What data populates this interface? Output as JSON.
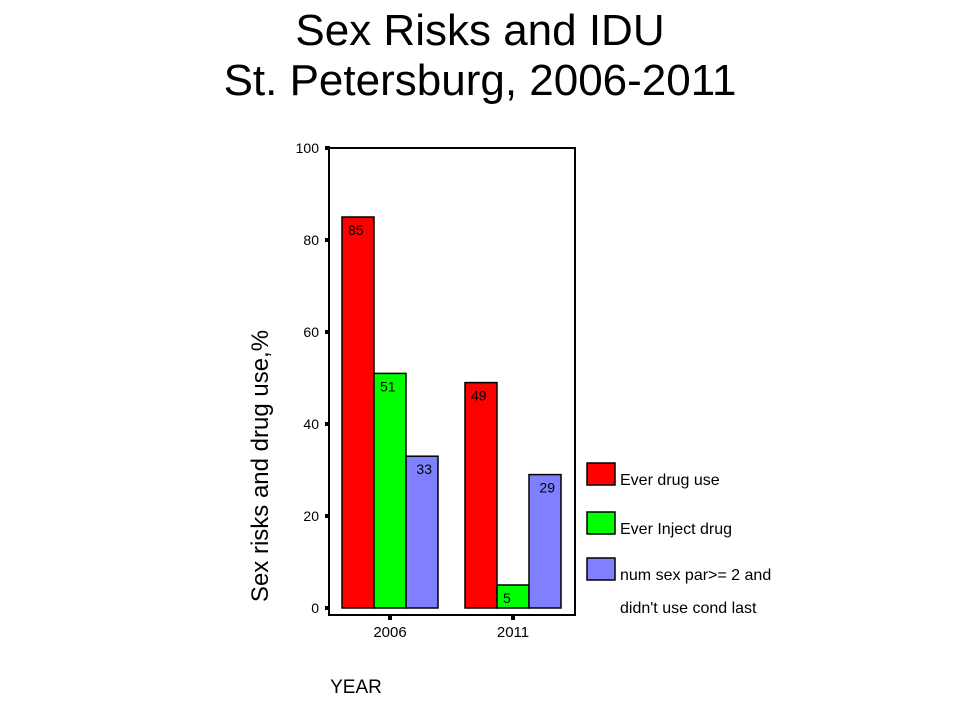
{
  "page": {
    "title_line1": "Sex Risks and IDU",
    "title_line2": "St. Petersburg, 2006-2011"
  },
  "chart_data": {
    "type": "bar",
    "categories": [
      "2006",
      "2011"
    ],
    "series": [
      {
        "name": "Ever drug use",
        "values": [
          85,
          49
        ],
        "color": "#ff0000"
      },
      {
        "name": "Ever Inject drug",
        "values": [
          51,
          5
        ],
        "color": "#00ff00"
      },
      {
        "name": "num sex par>= 2 and didn't use cond last",
        "values": [
          33,
          29
        ],
        "color": "#8080ff"
      }
    ],
    "legend_lines": [
      [
        "Ever drug use"
      ],
      [
        "Ever Inject drug"
      ],
      [
        "num sex par>= 2 and",
        "didn't use cond last"
      ]
    ],
    "xlabel": "YEAR",
    "ylabel": "Sex risks and drug use,%",
    "ylim": [
      0,
      100
    ],
    "yticks": [
      0,
      20,
      40,
      60,
      80,
      100
    ],
    "grid": false,
    "legend_position": "right"
  }
}
